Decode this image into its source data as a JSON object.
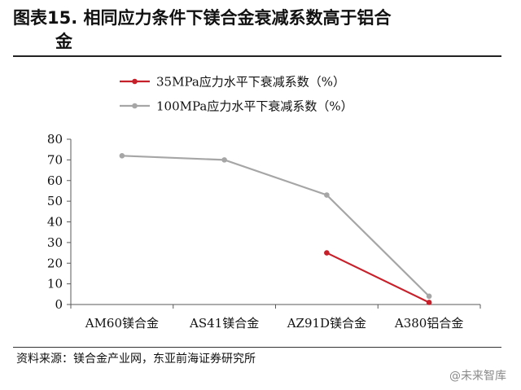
{
  "title": {
    "line1": "图表15. 相同应力条件下镁合金衰减系数高于铝合",
    "line2": "金"
  },
  "source": "资料来源：镁合金产业网，东亚前海证券研究所",
  "watermark": "@未来智库",
  "chart_data": {
    "type": "line",
    "categories": [
      "AM60镁合金",
      "AS41镁合金",
      "AZ91D镁合金",
      "A380铝合金"
    ],
    "series": [
      {
        "name": "35MPa应力水平下衰减系数（%）",
        "values": [
          null,
          null,
          25,
          1
        ],
        "color": "#c8202a"
      },
      {
        "name": "100MPa应力水平下衰减系数（%）",
        "values": [
          72,
          70,
          53,
          4
        ],
        "color": "#a6a6a6"
      }
    ],
    "ylim": [
      0,
      80
    ],
    "yticks": [
      "0",
      "10",
      "20",
      "30",
      "40",
      "50",
      "60",
      "70",
      "80"
    ],
    "legend": "top",
    "grid": false
  }
}
